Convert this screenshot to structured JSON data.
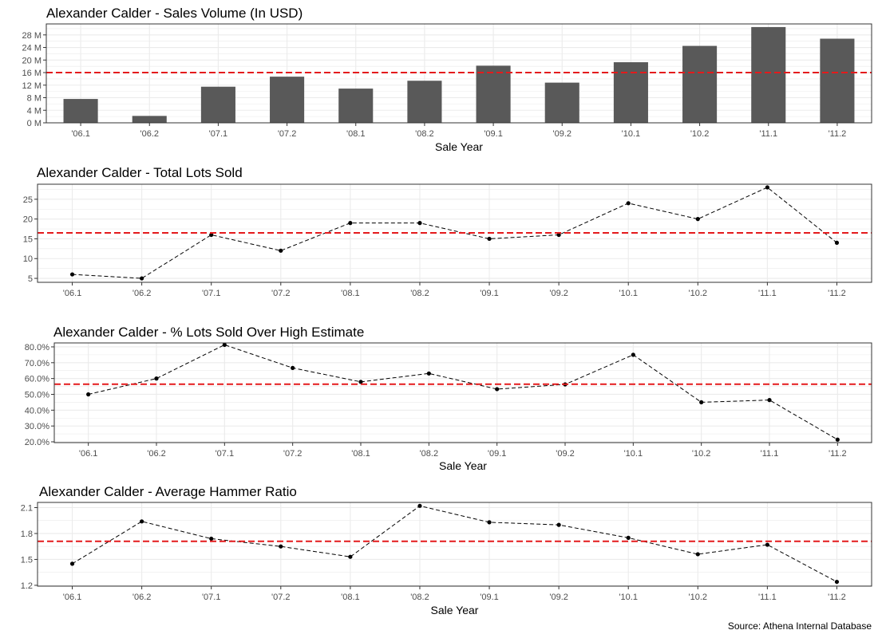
{
  "caption": "Source: Athena Internal Database",
  "colors": {
    "bar": "#595959",
    "reference_line": "#e41a1c",
    "series_line": "#000000",
    "grid": "#ebebeb",
    "panel_border": "#333333"
  },
  "chart_data": [
    {
      "type": "bar",
      "title": "Alexander Calder - Sales Volume (In USD)",
      "xlabel": "Sale Year",
      "ylabel": "",
      "categories": [
        "'06.1",
        "'06.2",
        "'07.1",
        "'07.2",
        "'08.1",
        "'08.2",
        "'09.1",
        "'09.2",
        "'10.1",
        "'10.2",
        "'11.1",
        "'11.2"
      ],
      "values": [
        7.6,
        2.2,
        11.5,
        14.7,
        10.9,
        13.4,
        18.2,
        12.8,
        19.3,
        24.5,
        30.5,
        26.8
      ],
      "ylim": [
        0,
        31.5
      ],
      "yticks": [
        0,
        4,
        8,
        12,
        16,
        20,
        24,
        28
      ],
      "ytick_labels": [
        "0 M",
        "4 M",
        "8 M",
        "12 M",
        "16 M",
        "20 M",
        "24 M",
        "28 M"
      ],
      "reference_line": 16.0,
      "grid": true
    },
    {
      "type": "line",
      "title": "Alexander Calder - Total Lots Sold",
      "xlabel": "",
      "ylabel": "",
      "categories": [
        "'06.1",
        "'06.2",
        "'07.1",
        "'07.2",
        "'08.1",
        "'08.2",
        "'09.1",
        "'09.2",
        "'10.1",
        "'10.2",
        "'11.1",
        "'11.2"
      ],
      "values": [
        6,
        5,
        16,
        12,
        19,
        19,
        15,
        16,
        24,
        20,
        28,
        14
      ],
      "ylim": [
        4.0,
        28.8
      ],
      "yticks": [
        5,
        10,
        15,
        20,
        25
      ],
      "ytick_labels": [
        "5",
        "10",
        "15",
        "20",
        "25"
      ],
      "reference_line": 16.5,
      "grid": true
    },
    {
      "type": "line",
      "title": "Alexander Calder - % Lots Sold Over High Estimate",
      "xlabel": "Sale Year",
      "ylabel": "",
      "categories": [
        "'06.1",
        "'06.2",
        "'07.1",
        "'07.2",
        "'08.1",
        "'08.2",
        "'09.1",
        "'09.2",
        "'10.1",
        "'10.2",
        "'11.1",
        "'11.2"
      ],
      "values": [
        50.0,
        60.0,
        81.3,
        66.7,
        57.9,
        63.2,
        53.3,
        56.3,
        75.0,
        45.0,
        46.4,
        21.4
      ],
      "ylim": [
        19.5,
        82.5
      ],
      "yticks": [
        20,
        30,
        40,
        50,
        60,
        70,
        80
      ],
      "ytick_labels": [
        "20.0%",
        "30.0%",
        "40.0%",
        "50.0%",
        "60.0%",
        "70.0%",
        "80.0%"
      ],
      "reference_line": 56.4,
      "grid": true
    },
    {
      "type": "line",
      "title": "Alexander Calder - Average Hammer Ratio",
      "xlabel": "Sale Year",
      "ylabel": "",
      "categories": [
        "'06.1",
        "'06.2",
        "'07.1",
        "'07.2",
        "'08.1",
        "'08.2",
        "'09.1",
        "'09.2",
        "'10.1",
        "'10.2",
        "'11.1",
        "'11.2"
      ],
      "values": [
        1.45,
        1.94,
        1.74,
        1.65,
        1.53,
        2.12,
        1.93,
        1.9,
        1.75,
        1.56,
        1.67,
        1.24
      ],
      "ylim": [
        1.19,
        2.16
      ],
      "yticks": [
        1.2,
        1.5,
        1.8,
        2.1
      ],
      "ytick_labels": [
        "1.2",
        "1.5",
        "1.8",
        "2.1"
      ],
      "reference_line": 1.71,
      "grid": true
    }
  ]
}
